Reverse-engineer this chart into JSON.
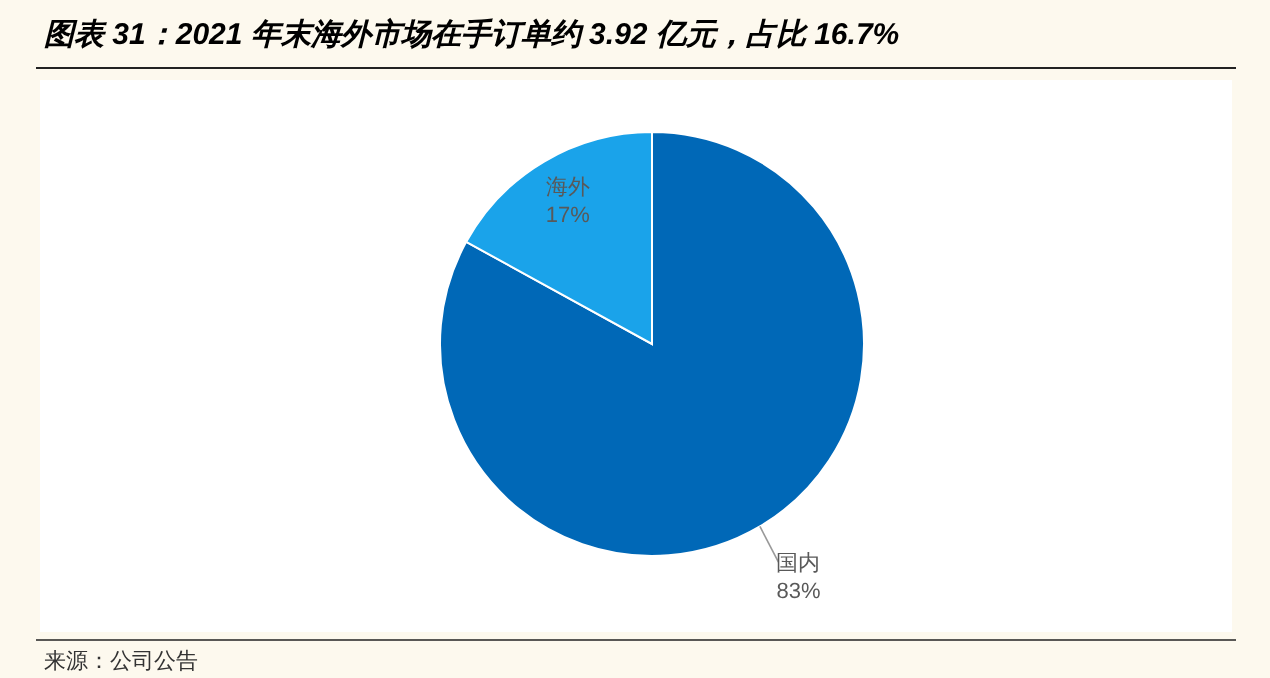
{
  "chart_data": {
    "type": "pie",
    "title": "图表 31：2021 年末海外市场在手订单约 3.92 亿元，占比 16.7%",
    "categories": [
      "国内",
      "海外"
    ],
    "values": [
      83,
      17
    ],
    "colors": [
      "#0068b7",
      "#1aa3ea"
    ],
    "value_labels": [
      "83%",
      "17%"
    ],
    "annotations": [
      "来源：公司公告"
    ]
  }
}
